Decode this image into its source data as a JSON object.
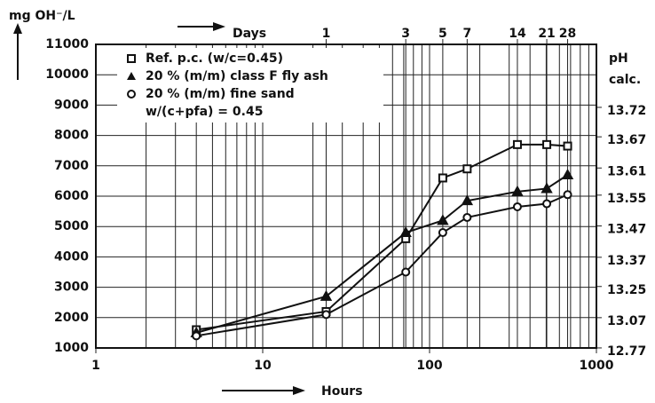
{
  "chart_data": {
    "type": "line",
    "y_label": "mg OH⁻/L",
    "x_label": "Hours",
    "x2_label": "Days",
    "y2_label": "pH",
    "y2_label_2": "calc.",
    "x_log": true,
    "grid": true,
    "xlim": [
      1,
      1000
    ],
    "xticks": [
      1,
      10,
      100,
      1000
    ],
    "ylim": [
      1000,
      11000
    ],
    "yticks": [
      1000,
      2000,
      3000,
      4000,
      5000,
      6000,
      7000,
      8000,
      9000,
      10000,
      11000
    ],
    "x2ticks": [
      1,
      3,
      5,
      7,
      14,
      21,
      28
    ],
    "y2ticks": [
      13.72,
      13.67,
      13.61,
      13.55,
      13.47,
      13.37,
      13.25,
      13.07,
      12.77
    ],
    "legend_note": "w/(c+pfa) = 0.45",
    "x": [
      4,
      24,
      72,
      120,
      168,
      336,
      504,
      672
    ],
    "series": [
      {
        "name": "Ref. p.c. (w/c=0.45)",
        "marker": "square",
        "color": "#111",
        "values": [
          1600,
          2200,
          4600,
          6600,
          6900,
          7700,
          7700,
          7650
        ]
      },
      {
        "name": "20 % (m/m) class F fly ash",
        "marker": "triangle",
        "color": "#111",
        "values": [
          1500,
          2700,
          4800,
          5200,
          5850,
          6150,
          6250,
          6700
        ]
      },
      {
        "name": "20 % (m/m) fine sand",
        "marker": "circle",
        "color": "#111",
        "values": [
          1400,
          2100,
          3500,
          4800,
          5300,
          5650,
          5750,
          6050
        ]
      }
    ]
  }
}
